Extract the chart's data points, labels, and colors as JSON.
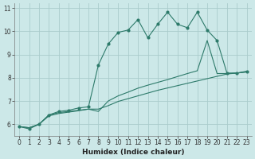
{
  "xlabel": "Humidex (Indice chaleur)",
  "background_color": "#cce8e8",
  "grid_color": "#aacccc",
  "line_color": "#2d7a6a",
  "x": [
    0,
    1,
    2,
    3,
    4,
    5,
    6,
    7,
    8,
    9,
    10,
    11,
    12,
    13,
    14,
    15,
    16,
    17,
    18,
    19,
    20,
    21,
    22,
    23
  ],
  "line_top": [
    5.9,
    5.8,
    6.0,
    6.4,
    6.55,
    6.6,
    6.7,
    6.75,
    8.55,
    9.45,
    9.95,
    10.05,
    10.5,
    9.72,
    10.3,
    10.82,
    10.3,
    10.15,
    10.82,
    10.05,
    9.6,
    8.2,
    8.2,
    8.28
  ],
  "line_mid": [
    5.9,
    5.85,
    6.0,
    6.4,
    6.5,
    6.55,
    6.6,
    6.65,
    6.55,
    7.0,
    7.22,
    7.38,
    7.55,
    7.68,
    7.8,
    7.92,
    8.05,
    8.18,
    8.3,
    9.6,
    8.18,
    8.18,
    8.2,
    8.25
  ],
  "line_bot": [
    5.9,
    5.85,
    6.0,
    6.36,
    6.46,
    6.52,
    6.58,
    6.65,
    6.65,
    6.8,
    6.98,
    7.1,
    7.22,
    7.34,
    7.46,
    7.56,
    7.66,
    7.76,
    7.86,
    7.96,
    8.06,
    8.16,
    8.2,
    8.25
  ],
  "ylim": [
    5.5,
    11.2
  ],
  "xlim": [
    -0.5,
    23.5
  ],
  "yticks": [
    6,
    7,
    8,
    9,
    10,
    11
  ],
  "xticks": [
    0,
    1,
    2,
    3,
    4,
    5,
    6,
    7,
    8,
    9,
    10,
    11,
    12,
    13,
    14,
    15,
    16,
    17,
    18,
    19,
    20,
    21,
    22,
    23
  ],
  "tick_fontsize": 5.5,
  "xlabel_fontsize": 6.5
}
